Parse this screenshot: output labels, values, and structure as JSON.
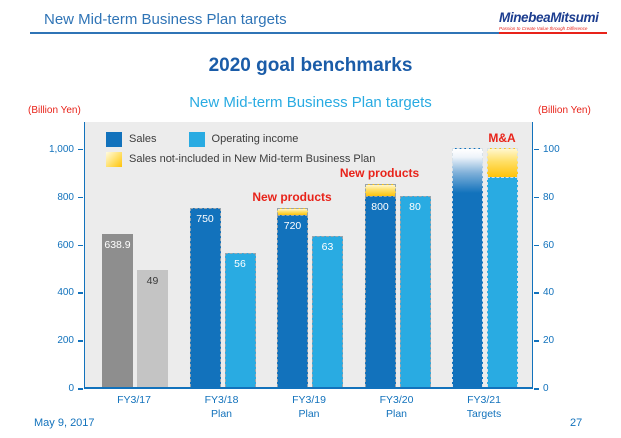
{
  "slide": {
    "header": {
      "title": "New Mid-term Business Plan targets"
    },
    "logo": {
      "name": "MinebeaMitsumi",
      "tagline": "Passion to Create Value through Difference"
    },
    "title": "2020 goal benchmarks",
    "subtitle": "New Mid-term Business Plan targets",
    "footer": {
      "date": "May 9, 2017",
      "page": "27"
    }
  },
  "colors": {
    "sales": "#1272BC",
    "operating_income": "#29ABE2",
    "sales_actual": "#8E8E8E",
    "operating_income_actual": "#C4C4C4",
    "extra_gold_top": "#FFF7CE",
    "extra_gold_bottom": "#FFC30B",
    "annotation_red": "#E8231A",
    "axis_blue": "#1272BC",
    "plot_background": "#ECECEC"
  },
  "chart_data": {
    "type": "bar",
    "title": "New Mid-term Business Plan targets",
    "left_axis": {
      "unit": "(Billion Yen)",
      "min": 0,
      "max": 1000,
      "tick_step": 200,
      "tick_labels": [
        "0",
        "200",
        "400",
        "600",
        "800",
        "1,000"
      ]
    },
    "right_axis": {
      "unit": "(Billion Yen)",
      "min": 0,
      "max": 100,
      "tick_step": 20,
      "tick_labels": [
        "0",
        "20",
        "40",
        "60",
        "80",
        "100"
      ]
    },
    "legend": [
      {
        "label": "Sales",
        "swatch": "sales"
      },
      {
        "label": "Operating income",
        "swatch": "operating-income"
      },
      {
        "label": "Sales not-included in New Mid-term Business Plan",
        "swatch": "extra-gold"
      }
    ],
    "legend_position": "top-left-inside",
    "grid": false,
    "categories": [
      "FY3/17",
      "FY3/18 Plan",
      "FY3/19 Plan",
      "FY3/20 Plan",
      "FY3/21 Targets"
    ],
    "series": [
      {
        "name": "Sales (billion yen, left axis)",
        "values": [
          638.9,
          750,
          720,
          800,
          1000
        ]
      },
      {
        "name": "Sales not-included in New Mid-term Business Plan (stacked on Sales, estimated)",
        "values": [
          0,
          0,
          30,
          50,
          0
        ]
      },
      {
        "name": "Operating income (billion yen, right axis)",
        "values": [
          49,
          56,
          63,
          80,
          88
        ]
      },
      {
        "name": "M&A contribution on Operating income (stacked, estimated)",
        "values": [
          0,
          0,
          0,
          0,
          12
        ]
      }
    ],
    "groups": [
      {
        "cat1": "FY3/17",
        "cat2": "",
        "sales": 638.9,
        "sales_extra": 0,
        "op": 49,
        "op_extra": 0,
        "sales_label": "638.9",
        "op_label": "49",
        "style": "actual",
        "ann_sales": "",
        "ann_op": ""
      },
      {
        "cat1": "FY3/18",
        "cat2": "Plan",
        "sales": 750,
        "sales_extra": 0,
        "op": 56,
        "op_extra": 0,
        "sales_label": "750",
        "op_label": "56",
        "style": "plan",
        "ann_sales": "",
        "ann_op": ""
      },
      {
        "cat1": "FY3/19",
        "cat2": "Plan",
        "sales": 720,
        "sales_extra": 30,
        "op": 63,
        "op_extra": 0,
        "sales_label": "720",
        "op_label": "63",
        "style": "plan",
        "ann_sales": "New products",
        "ann_op": ""
      },
      {
        "cat1": "FY3/20",
        "cat2": "Plan",
        "sales": 800,
        "sales_extra": 50,
        "op": 80,
        "op_extra": 0,
        "sales_label": "800",
        "op_label": "80",
        "style": "plan",
        "ann_sales": "New products",
        "ann_op": ""
      },
      {
        "cat1": "FY3/21",
        "cat2": "Targets",
        "sales": 1000,
        "sales_extra": 0,
        "op": 88,
        "op_extra": 12,
        "sales_label": "",
        "op_label": "",
        "style": "target",
        "ann_sales": "",
        "ann_op": "M&A"
      }
    ]
  }
}
